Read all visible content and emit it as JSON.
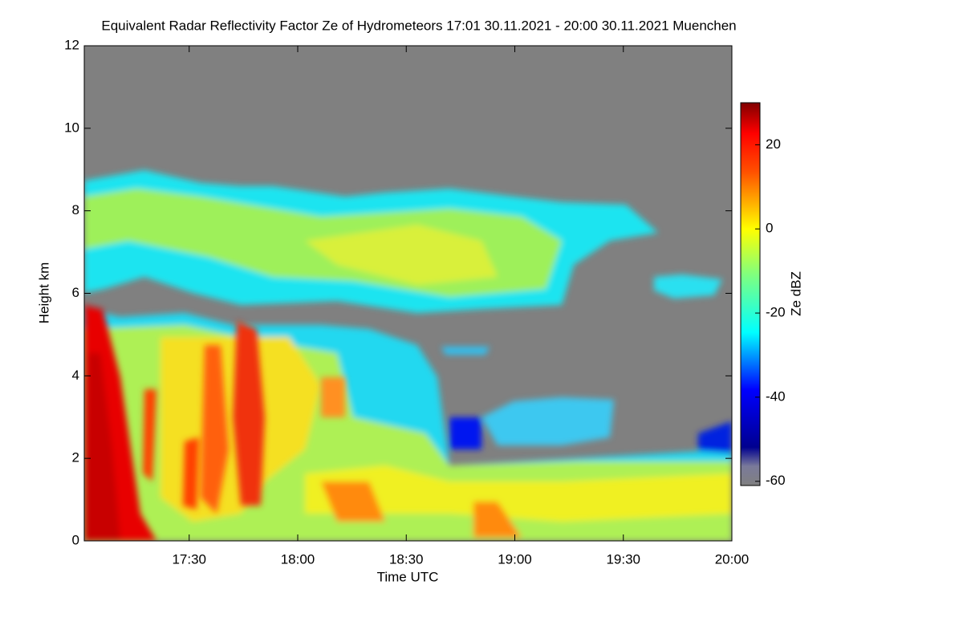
{
  "chart_data": {
    "type": "heatmap",
    "title": "Equivalent Radar Reflectivity Factor Ze of Hydrometeors   17:01 30.11.2021 - 20:00 30.11.2021 Muenchen",
    "x_label": "Time UTC",
    "y_label": "Height km",
    "colorbar_label": "Ze dBZ",
    "xlim": [
      1021,
      1200
    ],
    "xticks": [
      {
        "value": 1050,
        "label": "17:30"
      },
      {
        "value": 1080,
        "label": "18:00"
      },
      {
        "value": 1110,
        "label": "18:30"
      },
      {
        "value": 1140,
        "label": "19:00"
      },
      {
        "value": 1170,
        "label": "19:30"
      },
      {
        "value": 1200,
        "label": "20:00"
      }
    ],
    "ylim": [
      0,
      12
    ],
    "yticks": [
      0,
      2,
      4,
      6,
      8,
      10,
      12
    ],
    "clim": [
      -61,
      30
    ],
    "cticks": [
      20,
      0,
      -20,
      -40,
      -60
    ]
  }
}
